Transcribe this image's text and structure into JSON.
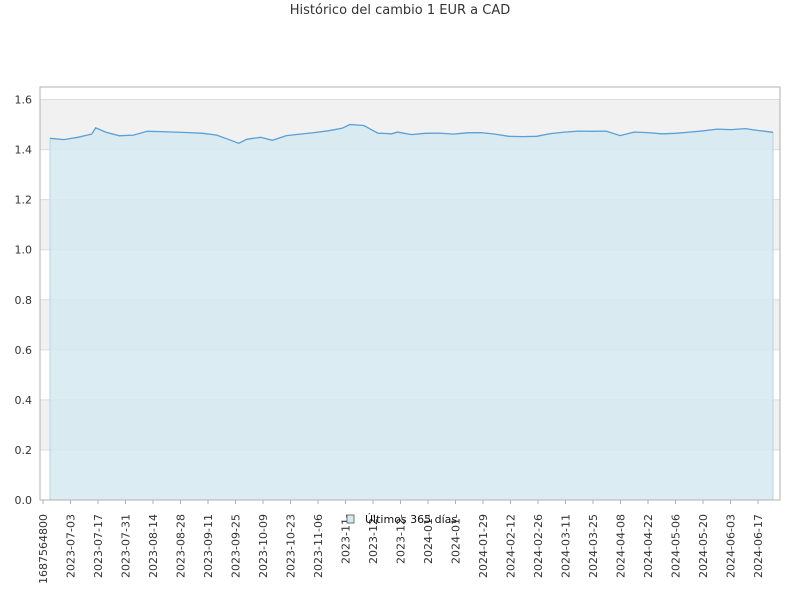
{
  "chart_data": {
    "type": "area",
    "title": "Histórico del cambio 1 EUR a CAD",
    "xlabel": "",
    "ylabel": "",
    "ylim": [
      0,
      1.65
    ],
    "y_ticks": [
      "0.0",
      "0.2",
      "0.4",
      "0.6",
      "0.8",
      "1.0",
      "1.2",
      "1.4",
      "1.6"
    ],
    "x_tick_labels": [
      "1687564800",
      "2023-07-03",
      "2023-07-17",
      "2023-07-31",
      "2023-08-14",
      "2023-08-28",
      "2023-09-11",
      "2023-09-25",
      "2023-10-09",
      "2023-10-23",
      "2023-11-06",
      "2023-11-",
      "2023-12-",
      "2023-12-",
      "2024-01-",
      "2024-01-",
      "2024-01-29",
      "2024-02-12",
      "2024-02-26",
      "2024-03-11",
      "2024-03-25",
      "2024-04-08",
      "2024-04-22",
      "2024-05-06",
      "2024-05-20",
      "2024-06-03",
      "2024-06-17"
    ],
    "grid": true,
    "legend_position": "bottom-center",
    "series": [
      {
        "name": "Últimos 365 días",
        "x": [
          "2023-06-24",
          "2023-07-01",
          "2023-07-08",
          "2023-07-15",
          "2023-07-17",
          "2023-07-22",
          "2023-07-29",
          "2023-08-05",
          "2023-08-12",
          "2023-08-19",
          "2023-08-26",
          "2023-09-02",
          "2023-09-09",
          "2023-09-16",
          "2023-09-23",
          "2023-09-27",
          "2023-10-01",
          "2023-10-08",
          "2023-10-14",
          "2023-10-21",
          "2023-10-28",
          "2023-11-04",
          "2023-11-11",
          "2023-11-18",
          "2023-11-22",
          "2023-11-29",
          "2023-12-06",
          "2023-12-13",
          "2023-12-16",
          "2023-12-23",
          "2023-12-30",
          "2024-01-06",
          "2024-01-13",
          "2024-01-20",
          "2024-01-27",
          "2024-02-03",
          "2024-02-10",
          "2024-02-17",
          "2024-02-24",
          "2024-03-02",
          "2024-03-09",
          "2024-03-16",
          "2024-03-23",
          "2024-03-30",
          "2024-04-06",
          "2024-04-13",
          "2024-04-20",
          "2024-04-27",
          "2024-05-04",
          "2024-05-11",
          "2024-05-18",
          "2024-05-25",
          "2024-06-01",
          "2024-06-08",
          "2024-06-15",
          "2024-06-22"
        ],
        "values": [
          1.445,
          1.44,
          1.449,
          1.462,
          1.487,
          1.47,
          1.455,
          1.458,
          1.473,
          1.472,
          1.47,
          1.468,
          1.465,
          1.458,
          1.437,
          1.425,
          1.441,
          1.449,
          1.437,
          1.456,
          1.462,
          1.468,
          1.475,
          1.485,
          1.5,
          1.496,
          1.466,
          1.463,
          1.47,
          1.46,
          1.465,
          1.466,
          1.462,
          1.467,
          1.468,
          1.462,
          1.453,
          1.452,
          1.453,
          1.464,
          1.47,
          1.474,
          1.473,
          1.474,
          1.456,
          1.47,
          1.468,
          1.463,
          1.465,
          1.47,
          1.475,
          1.482,
          1.48,
          1.484,
          1.476,
          1.469
        ]
      }
    ],
    "colors": {
      "line": "#5aa0d8",
      "area": "#d6e9f1",
      "band": "#f1f1f1",
      "grid": "#dcdcdc",
      "axis": "#b0b0b0"
    }
  }
}
